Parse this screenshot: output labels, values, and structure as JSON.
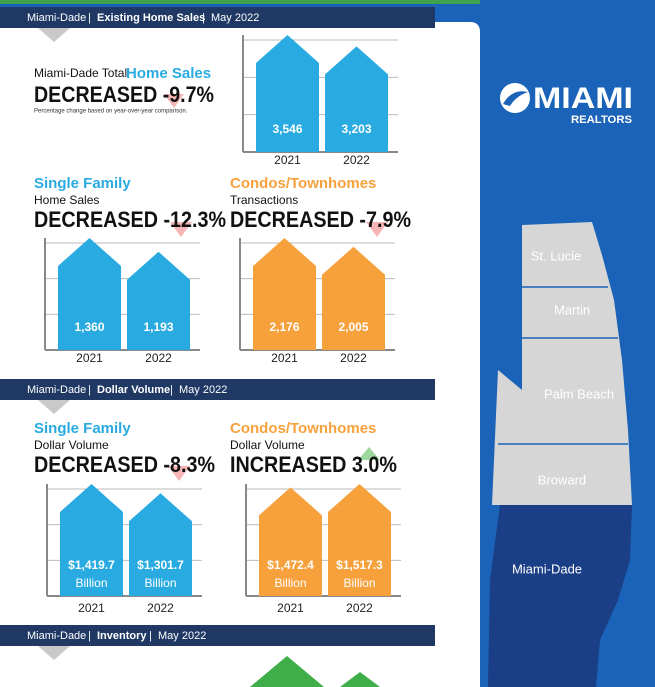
{
  "brand": {
    "name": "MIAMI",
    "sub": "REALTORS"
  },
  "separator": "|",
  "sections": [
    {
      "region": "Miami-Dade",
      "topic": "Existing Home Sales",
      "date": "May 2022"
    },
    {
      "region": "Miami-Dade",
      "topic": "Dollar Volume",
      "date": "May 2022"
    },
    {
      "region": "Miami-Dade",
      "topic": "Inventory",
      "date": "May 2022"
    }
  ],
  "blocks": [
    {
      "lead": "Miami-Dade Total ",
      "title": "Home Sales",
      "headline": "DECREASED -9.7%",
      "note": "Percentage change based on year-over-year comparison."
    },
    {
      "title": "Single Family",
      "subtitle": "Home Sales",
      "headline": "DECREASED -12.3%"
    },
    {
      "title": "Condos/Townhomes",
      "subtitle": "Transactions",
      "headline": "DECREASED -7.9%"
    },
    {
      "title": "Single Family",
      "subtitle": "Dollar Volume",
      "headline": "DECREASED -8.3%"
    },
    {
      "title": "Condos/Townhomes",
      "subtitle": "Dollar Volume",
      "headline": "INCREASED 3.0%"
    }
  ],
  "chart_data": [
    {
      "type": "house",
      "color": "#29abe2",
      "categories": [
        "2021",
        "2022"
      ],
      "values": [
        3546,
        3203
      ],
      "value_labels": [
        "3,546",
        "3,203"
      ]
    },
    {
      "type": "house",
      "color": "#29abe2",
      "categories": [
        "2021",
        "2022"
      ],
      "values": [
        1360,
        1193
      ],
      "value_labels": [
        "1,360",
        "1,193"
      ]
    },
    {
      "type": "house",
      "color": "#f7a13c",
      "categories": [
        "2021",
        "2022"
      ],
      "values": [
        2176,
        2005
      ],
      "value_labels": [
        "2,176",
        "2,005"
      ]
    },
    {
      "type": "house",
      "color": "#29abe2",
      "categories": [
        "2021",
        "2022"
      ],
      "values": [
        1419.7,
        1301.7
      ],
      "value_labels": [
        "$1,419.7",
        "$1,301.7"
      ],
      "unit": "Billion"
    },
    {
      "type": "house",
      "color": "#f7a13c",
      "categories": [
        "2021",
        "2022"
      ],
      "values": [
        1472.4,
        1517.3
      ],
      "value_labels": [
        "$1,472.4",
        "$1,517.3"
      ],
      "unit": "Billion"
    }
  ],
  "map": {
    "counties": [
      "St. Lucie",
      "Martin",
      "Palm Beach",
      "Broward",
      "Miami-Dade"
    ]
  }
}
